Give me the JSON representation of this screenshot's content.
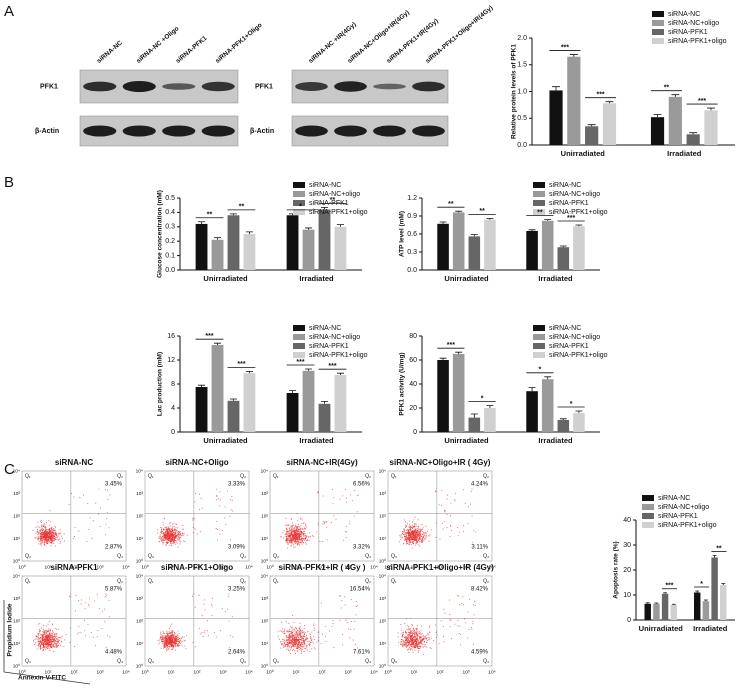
{
  "figure": {
    "panel_labels": [
      "A",
      "B",
      "C"
    ]
  },
  "blots": [
    {
      "lanes": [
        "siRNA-NC",
        "siRNA-NC +Oligo",
        "siRNA-PFK1",
        "siRNA-PFK1+Oligo"
      ],
      "rows": [
        "PFK1",
        "β-Actin"
      ]
    },
    {
      "lanes": [
        "siRNA-NC +IR(4Gy)",
        "siRNA-NC+Oligo+IR(4Gy)",
        "siRNA-PFK1+IR(4Gy)",
        "siRNA-PFK1+Oligo+IR(4Gy)"
      ],
      "rows": [
        "PFK1",
        "β-Actin"
      ]
    }
  ],
  "chart_data": [
    {
      "type": "bar",
      "y_label": "Relative protein levels of PFK1",
      "categories": [
        "Unirradiated",
        "Irradiated"
      ],
      "series": [
        {
          "name": "siRNA-NC",
          "color": "#111111",
          "values": [
            1.02,
            0.52
          ],
          "errors": [
            0.07,
            0.05
          ]
        },
        {
          "name": "siRNA-NC+oligo",
          "color": "#9a9a9a",
          "values": [
            1.65,
            0.9
          ],
          "errors": [
            0.04,
            0.04
          ]
        },
        {
          "name": "siRNA-PFK1",
          "color": "#666666",
          "values": [
            0.35,
            0.2
          ],
          "errors": [
            0.03,
            0.03
          ]
        },
        {
          "name": "siRNA-PFK1+oligo",
          "color": "#d0d0d0",
          "values": [
            0.78,
            0.65
          ],
          "errors": [
            0.03,
            0.04
          ]
        }
      ],
      "ylim": [
        0,
        2
      ],
      "yticks": [
        {
          "value": 0,
          "label": "0.0"
        },
        0.5,
        {
          "value": 1,
          "label": "1.0"
        },
        1.5,
        {
          "value": 2,
          "label": "2.0"
        }
      ],
      "annotations": [
        "***",
        "***",
        "**",
        "***"
      ]
    },
    {
      "type": "bar",
      "y_label": "Glucose  concentration  (mM)",
      "categories": [
        "Unirradiated",
        "Irradiated"
      ],
      "series": [
        {
          "name": "siRNA-NC",
          "color": "#111111",
          "values": [
            0.32,
            0.38
          ],
          "errors": [
            0.015,
            0.01
          ]
        },
        {
          "name": "siRNA-NC+oligo",
          "color": "#9a9a9a",
          "values": [
            0.21,
            0.28
          ],
          "errors": [
            0.015,
            0.012
          ]
        },
        {
          "name": "siRNA-PFK1",
          "color": "#666666",
          "values": [
            0.38,
            0.42
          ],
          "errors": [
            0.01,
            0.015
          ]
        },
        {
          "name": "siRNA-PFK1+oligo",
          "color": "#d0d0d0",
          "values": [
            0.25,
            0.3
          ],
          "errors": [
            0.015,
            0.015
          ]
        }
      ],
      "ylim": [
        0,
        0.5
      ],
      "yticks": [
        {
          "value": 0,
          "label": "0.0"
        },
        0.1,
        0.2,
        0.3,
        0.4,
        0.5
      ],
      "annotations": [
        "**",
        "**",
        "*",
        "**"
      ]
    },
    {
      "type": "bar",
      "y_label": "ATP level  (mM)",
      "categories": [
        "Unirradiated",
        "Irradiated"
      ],
      "series": [
        {
          "name": "siRNA-NC",
          "color": "#111111",
          "values": [
            0.77,
            0.65
          ],
          "errors": [
            0.03,
            0.02
          ]
        },
        {
          "name": "siRNA-NC+oligo",
          "color": "#9a9a9a",
          "values": [
            0.96,
            0.82
          ],
          "errors": [
            0.02,
            0.02
          ]
        },
        {
          "name": "siRNA-PFK1",
          "color": "#666666",
          "values": [
            0.56,
            0.38
          ],
          "errors": [
            0.03,
            0.02
          ]
        },
        {
          "name": "siRNA-PFK1+oligo",
          "color": "#d0d0d0",
          "values": [
            0.84,
            0.73
          ],
          "errors": [
            0.02,
            0.02
          ]
        }
      ],
      "ylim": [
        0,
        1.2
      ],
      "yticks": [
        {
          "value": 0,
          "label": "0.0"
        },
        0.3,
        0.6,
        0.9,
        1.2
      ],
      "annotations": [
        "**",
        "**",
        "**",
        "***"
      ]
    },
    {
      "type": "bar",
      "y_label": "Lac production  (mM)",
      "categories": [
        "Unirradiated",
        "Irradiated"
      ],
      "series": [
        {
          "name": "siRNA-NC",
          "color": "#111111",
          "values": [
            7.5,
            6.5
          ],
          "errors": [
            0.3,
            0.4
          ]
        },
        {
          "name": "siRNA-NC+oligo",
          "color": "#9a9a9a",
          "values": [
            14.5,
            10.2
          ],
          "errors": [
            0.3,
            0.3
          ]
        },
        {
          "name": "siRNA-PFK1",
          "color": "#666666",
          "values": [
            5.2,
            4.7
          ],
          "errors": [
            0.3,
            0.4
          ]
        },
        {
          "name": "siRNA-PFK1+oligo",
          "color": "#d0d0d0",
          "values": [
            9.8,
            9.5
          ],
          "errors": [
            0.3,
            0.3
          ]
        }
      ],
      "ylim": [
        0,
        16
      ],
      "yticks": [
        0,
        4,
        8,
        12,
        16
      ],
      "annotations": [
        "***",
        "***",
        "***",
        "***"
      ]
    },
    {
      "type": "bar",
      "y_label": "PFK1 activity (U/mg)",
      "categories": [
        "Unirradiated",
        "Irradiated"
      ],
      "series": [
        {
          "name": "siRNA-NC",
          "color": "#111111",
          "values": [
            60,
            34
          ],
          "errors": [
            1.5,
            3
          ]
        },
        {
          "name": "siRNA-NC+oligo",
          "color": "#9a9a9a",
          "values": [
            65,
            44
          ],
          "errors": [
            1.5,
            2
          ]
        },
        {
          "name": "siRNA-PFK1",
          "color": "#666666",
          "values": [
            12,
            10
          ],
          "errors": [
            3,
            1
          ]
        },
        {
          "name": "siRNA-PFK1+oligo",
          "color": "#d0d0d0",
          "values": [
            20,
            16
          ],
          "errors": [
            2,
            1.5
          ]
        }
      ],
      "ylim": [
        0,
        80
      ],
      "yticks": [
        0,
        20,
        40,
        60,
        80
      ],
      "annotations": [
        "***",
        "*",
        "*",
        "*"
      ]
    },
    {
      "type": "bar",
      "y_label": "Apoptosis rate (%)",
      "categories": [
        "Unirradiated",
        "Irradiated"
      ],
      "series": [
        {
          "name": "siRNA-NC",
          "color": "#111111",
          "values": [
            6.5,
            11
          ],
          "errors": [
            0.4,
            0.6
          ]
        },
        {
          "name": "siRNA-NC+oligo",
          "color": "#9a9a9a",
          "values": [
            6.5,
            7.5
          ],
          "errors": [
            0.3,
            0.5
          ]
        },
        {
          "name": "siRNA-PFK1",
          "color": "#666666",
          "values": [
            10.5,
            25
          ],
          "errors": [
            0.4,
            0.8
          ]
        },
        {
          "name": "siRNA-PFK1+oligo",
          "color": "#d0d0d0",
          "values": [
            6,
            14
          ],
          "errors": [
            0.3,
            0.6
          ]
        }
      ],
      "ylim": [
        0,
        40
      ],
      "yticks": [
        0,
        10,
        20,
        30,
        40
      ],
      "annotations": [
        "***",
        "*",
        "**"
      ]
    }
  ],
  "flow": {
    "x_label": "Annexin V-FITC",
    "y_label": "Propidium Iodide",
    "ticks": [
      "10⁰",
      "10¹",
      "10²",
      "10³",
      "10⁴"
    ],
    "quadrants": [
      "Q₁",
      "Q₂",
      "Q₃",
      "Q₄"
    ],
    "panels": [
      {
        "title": "siRNA-NC",
        "upper_right": "3.45%",
        "lower_right": "2.87%"
      },
      {
        "title": "siRNA-NC+Oligo",
        "upper_right": "3.33%",
        "lower_right": "3.09%"
      },
      {
        "title": "siRNA-NC+IR(4Gy)",
        "upper_right": "6.56%",
        "lower_right": "3.32%"
      },
      {
        "title": "siRNA-NC+Oligo+IR ( 4Gy)",
        "upper_right": "4.24%",
        "lower_right": "3.11%"
      },
      {
        "title": "siRNA-PFK1",
        "upper_right": "5.87%",
        "lower_right": "4.48%"
      },
      {
        "title": "siRNA-PFK1+Oligo",
        "upper_right": "3.25%",
        "lower_right": "2.64%"
      },
      {
        "title": "siRNA-PFK1+IR ( 4Gy )",
        "upper_right": "16.54%",
        "lower_right": "7.61%"
      },
      {
        "title": "siRNA-PFK1+Oligo+IR (4Gy)",
        "upper_right": "8.42%",
        "lower_right": "4.59%"
      }
    ]
  }
}
